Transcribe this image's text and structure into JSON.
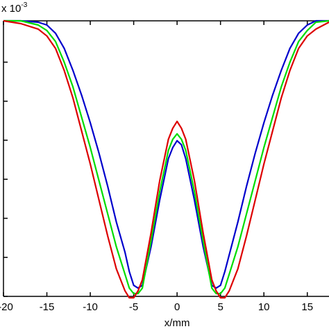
{
  "chart_data": {
    "type": "line",
    "title": "",
    "xlabel": "x/mm",
    "ylabel": "",
    "y_multiplier": {
      "base": "x 10",
      "exponent": "-3"
    },
    "xlim": [
      -20,
      17.5
    ],
    "ylim": [
      0,
      1
    ],
    "x_ticks": [
      -20,
      -15,
      -10,
      -5,
      0,
      5,
      10,
      15
    ],
    "x_tick_labels": [
      "-20",
      "-15",
      "-10",
      "-5",
      "0",
      "5",
      "10",
      "15"
    ],
    "y_ticks": [
      0.0,
      0.1417,
      0.2833,
      0.425,
      0.5667,
      0.7083,
      0.85
    ],
    "grid": false,
    "legend": "none",
    "series": [
      {
        "color": "#0000cc",
        "x": [
          -20,
          -18,
          -16,
          -15,
          -14,
          -13,
          -12,
          -11,
          -10,
          -9,
          -8,
          -7,
          -6,
          -5.5,
          -5,
          -4.5,
          -4,
          -3,
          -2,
          -1,
          -0.5,
          0,
          0.5,
          1,
          2,
          3,
          4,
          4.5,
          5,
          5.5,
          6,
          7,
          8,
          9,
          10,
          11,
          12,
          13,
          14,
          15,
          16,
          17.5
        ],
        "y": [
          1.0,
          1.0,
          0.995,
          0.985,
          0.955,
          0.9,
          0.82,
          0.73,
          0.63,
          0.52,
          0.4,
          0.27,
          0.16,
          0.09,
          0.04,
          0.03,
          0.04,
          0.18,
          0.35,
          0.5,
          0.54,
          0.565,
          0.55,
          0.5,
          0.35,
          0.18,
          0.04,
          0.03,
          0.04,
          0.09,
          0.15,
          0.27,
          0.4,
          0.52,
          0.63,
          0.73,
          0.82,
          0.9,
          0.955,
          0.985,
          1.0,
          1.0
        ]
      },
      {
        "color": "#00dd00",
        "x": [
          -20,
          -18,
          -16,
          -15,
          -14,
          -13,
          -12,
          -11,
          -10,
          -9,
          -8,
          -7,
          -6,
          -5.5,
          -5,
          -4.5,
          -4,
          -3,
          -2,
          -1,
          -0.5,
          0,
          0.5,
          1,
          2,
          3,
          4,
          4.5,
          5,
          5.5,
          6,
          7,
          8,
          9,
          10,
          11,
          12,
          13,
          14,
          15,
          16,
          17.5
        ],
        "y": [
          1.0,
          1.0,
          0.985,
          0.965,
          0.925,
          0.85,
          0.76,
          0.65,
          0.54,
          0.42,
          0.3,
          0.18,
          0.08,
          0.03,
          0.01,
          0.01,
          0.03,
          0.2,
          0.38,
          0.53,
          0.57,
          0.59,
          0.57,
          0.53,
          0.38,
          0.2,
          0.03,
          0.01,
          0.01,
          0.03,
          0.08,
          0.18,
          0.3,
          0.42,
          0.54,
          0.65,
          0.76,
          0.85,
          0.925,
          0.965,
          0.995,
          1.0
        ]
      },
      {
        "color": "#dd0000",
        "x": [
          -20,
          -18,
          -16,
          -15,
          -14,
          -13,
          -12,
          -11,
          -10,
          -9,
          -8,
          -7,
          -6,
          -5.5,
          -5,
          -4.5,
          -4,
          -3,
          -2,
          -1,
          -0.5,
          0,
          0.5,
          1,
          2,
          3,
          4,
          4.5,
          5,
          5.5,
          6,
          7,
          8,
          9,
          10,
          11,
          12,
          13,
          14,
          15,
          16,
          17.5
        ],
        "y": [
          1.0,
          0.99,
          0.97,
          0.945,
          0.9,
          0.82,
          0.72,
          0.6,
          0.48,
          0.35,
          0.22,
          0.1,
          0.02,
          -0.005,
          -0.005,
          0.02,
          0.06,
          0.23,
          0.42,
          0.57,
          0.61,
          0.635,
          0.61,
          0.57,
          0.42,
          0.23,
          0.06,
          0.02,
          -0.005,
          -0.005,
          0.02,
          0.1,
          0.22,
          0.35,
          0.48,
          0.6,
          0.72,
          0.82,
          0.9,
          0.945,
          0.97,
          0.995
        ]
      }
    ]
  }
}
